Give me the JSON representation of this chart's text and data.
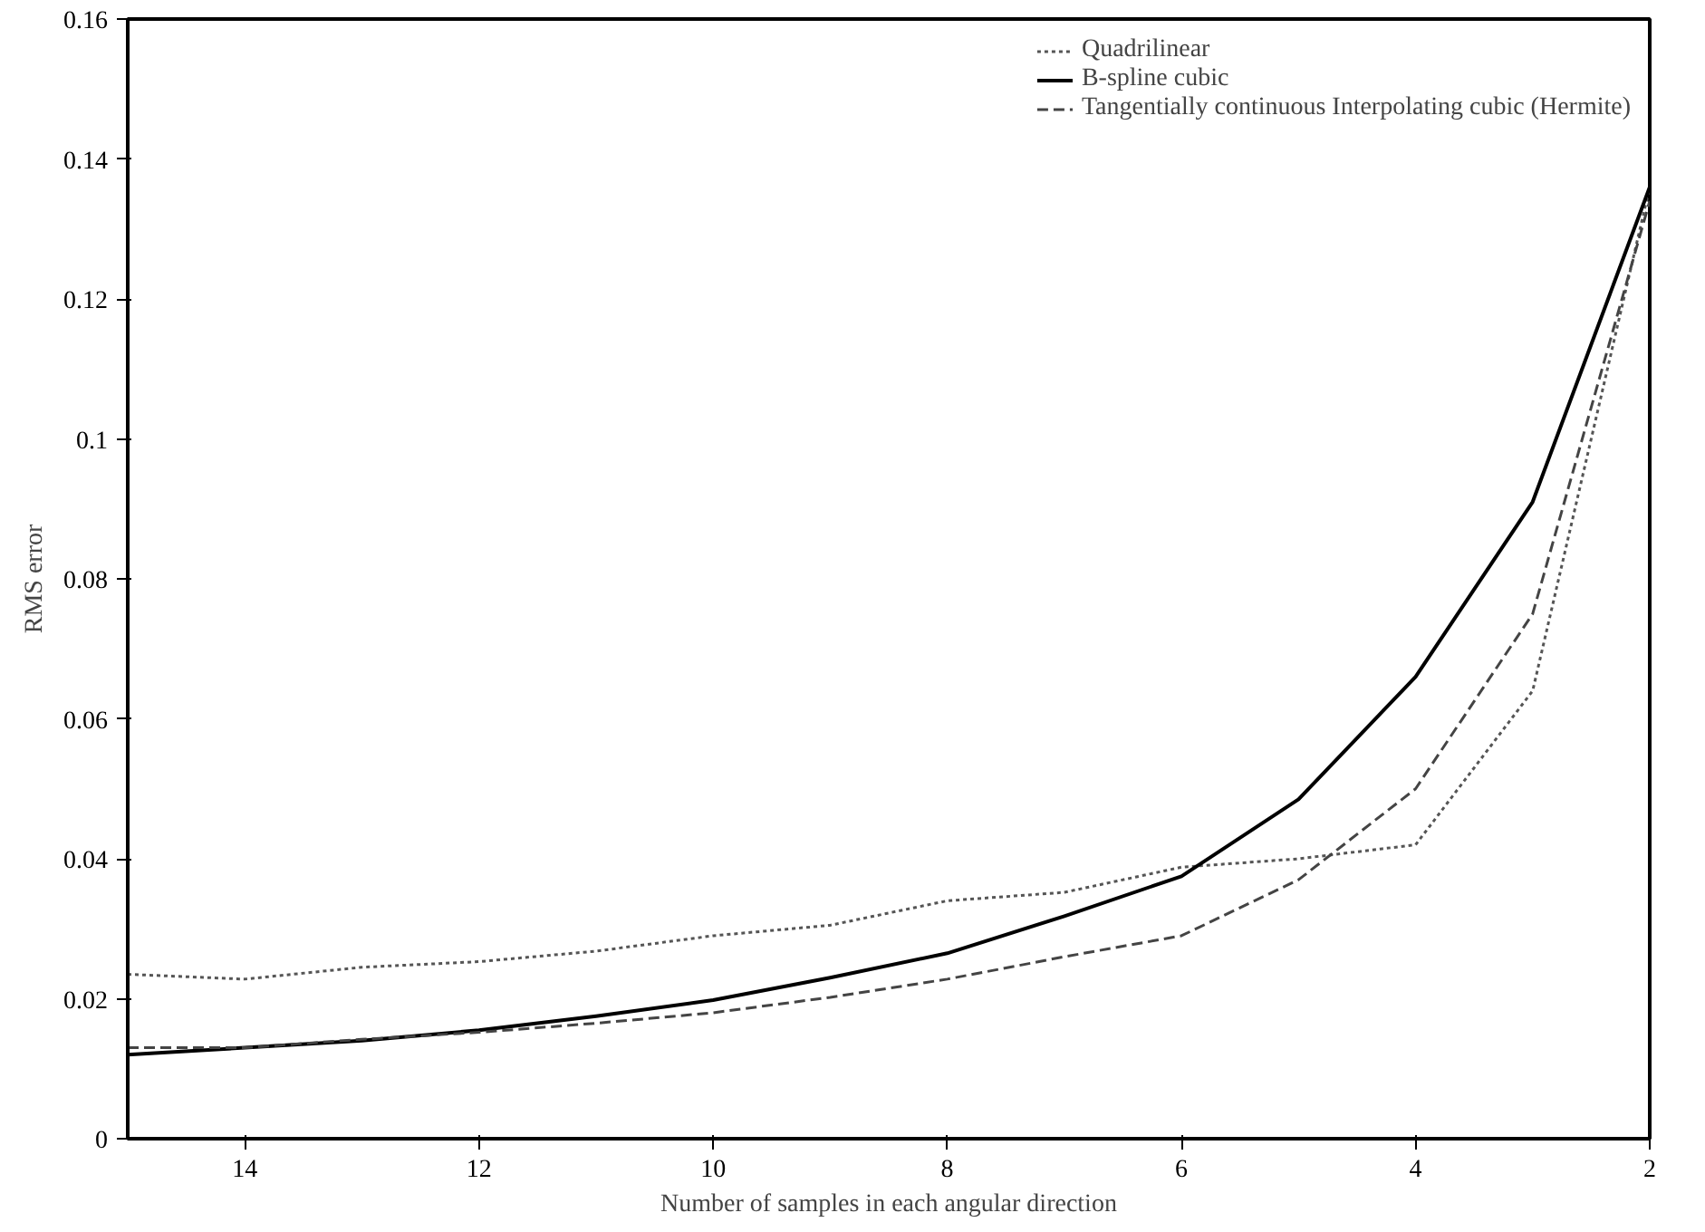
{
  "chart_data": {
    "type": "line",
    "xlabel": "Number of samples in each angular direction",
    "ylabel": "RMS error",
    "x": [
      15,
      14,
      13,
      12,
      11,
      10,
      9,
      8,
      7,
      6,
      5,
      4,
      3,
      2
    ],
    "series": [
      {
        "name": "Quadrilinear",
        "color": "#555555",
        "line_style": "dotted",
        "values": [
          0.0235,
          0.0228,
          0.0245,
          0.0253,
          0.0268,
          0.029,
          0.0305,
          0.034,
          0.0352,
          0.0388,
          0.04,
          0.042,
          0.064,
          0.136
        ]
      },
      {
        "name": "B-spline cubic",
        "color": "#000000",
        "line_style": "solid",
        "values": [
          0.012,
          0.013,
          0.014,
          0.0155,
          0.0175,
          0.0198,
          0.023,
          0.0265,
          0.0318,
          0.0375,
          0.0485,
          0.066,
          0.091,
          0.136
        ]
      },
      {
        "name": "Tangentially continuous Interpolating cubic (Hermite)",
        "color": "#444444",
        "line_style": "dashed",
        "values": [
          0.013,
          0.013,
          0.0142,
          0.0152,
          0.0165,
          0.018,
          0.0202,
          0.0228,
          0.026,
          0.029,
          0.037,
          0.05,
          0.075,
          0.134
        ]
      }
    ],
    "xlim": [
      15,
      2
    ],
    "xticks": [
      14,
      12,
      10,
      8,
      6,
      4,
      2
    ],
    "ylim": [
      0,
      0.16
    ],
    "yticks": [
      0,
      0.02,
      0.04,
      0.06,
      0.08,
      {
        "value": 0.1,
        "label": "0.1"
      },
      0.12,
      0.14,
      0.16
    ],
    "grid": false,
    "legend": "top right",
    "marker": "none"
  }
}
